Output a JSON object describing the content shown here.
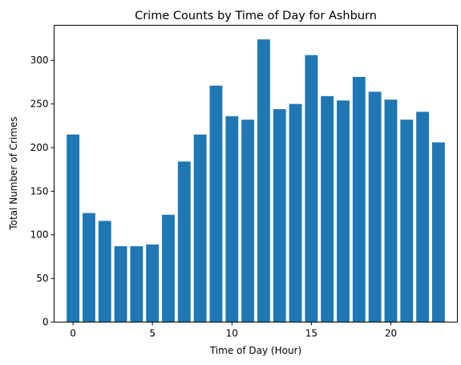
{
  "chart_data": {
    "type": "bar",
    "title": "Crime Counts by Time of Day for Ashburn",
    "xlabel": "Time of Day (Hour)",
    "ylabel": "Total Number of Crimes",
    "x": [
      0,
      1,
      2,
      3,
      4,
      5,
      6,
      7,
      8,
      9,
      10,
      11,
      12,
      13,
      14,
      15,
      16,
      17,
      18,
      19,
      20,
      21,
      22,
      23
    ],
    "values": [
      215,
      125,
      116,
      87,
      87,
      89,
      123,
      184,
      215,
      271,
      236,
      232,
      324,
      244,
      250,
      306,
      259,
      254,
      281,
      264,
      255,
      232,
      241,
      206
    ],
    "xlim": [
      -1.19,
      24.19
    ],
    "ylim": [
      0,
      340.2
    ],
    "xticks": [
      0,
      5,
      10,
      15,
      20
    ],
    "yticks": [
      0,
      50,
      100,
      150,
      200,
      250,
      300
    ],
    "bar_color": "#1f77b4",
    "grid": false,
    "legend": "none"
  }
}
